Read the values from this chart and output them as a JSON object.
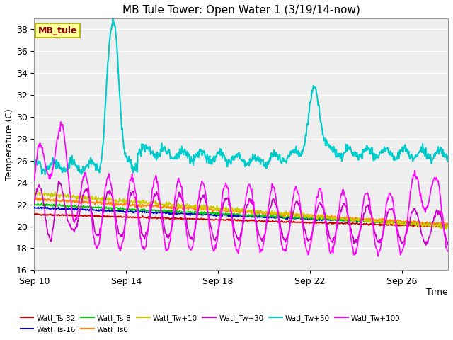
{
  "title": "MB Tule Tower: Open Water 1 (3/19/14-now)",
  "xlabel": "Time",
  "ylabel": "Temperature (C)",
  "ylim": [
    16,
    39
  ],
  "yticks": [
    16,
    18,
    20,
    22,
    24,
    26,
    28,
    30,
    32,
    34,
    36,
    38
  ],
  "xtick_labels": [
    "Sep 10",
    "Sep 14",
    "Sep 18",
    "Sep 22",
    "Sep 26"
  ],
  "xtick_positions": [
    0,
    4,
    8,
    12,
    16
  ],
  "xlim": [
    0,
    18
  ],
  "plot_bg": "#eeeeee",
  "fig_bg": "#ffffff",
  "grid_color": "#ffffff",
  "series": {
    "Watl_Ts-32": {
      "color": "#cc0000",
      "lw": 1.2
    },
    "Watl_Ts-16": {
      "color": "#0000cc",
      "lw": 1.2
    },
    "Watl_Ts-8": {
      "color": "#00cc00",
      "lw": 1.2
    },
    "Watl_Ts0": {
      "color": "#ff8800",
      "lw": 1.2
    },
    "Watl_Tw+10": {
      "color": "#cccc00",
      "lw": 1.2
    },
    "Watl_Tw+30": {
      "color": "#cc00cc",
      "lw": 1.2
    },
    "Watl_Tw+50": {
      "color": "#00cccc",
      "lw": 1.5
    },
    "Watl_Tw+100": {
      "color": "#ff00ff",
      "lw": 1.2
    }
  },
  "legend_box_color": "#ffff99",
  "legend_box_text": "MB_tule",
  "legend_box_text_color": "#880000",
  "legend_box_edge_color": "#aaaa00"
}
